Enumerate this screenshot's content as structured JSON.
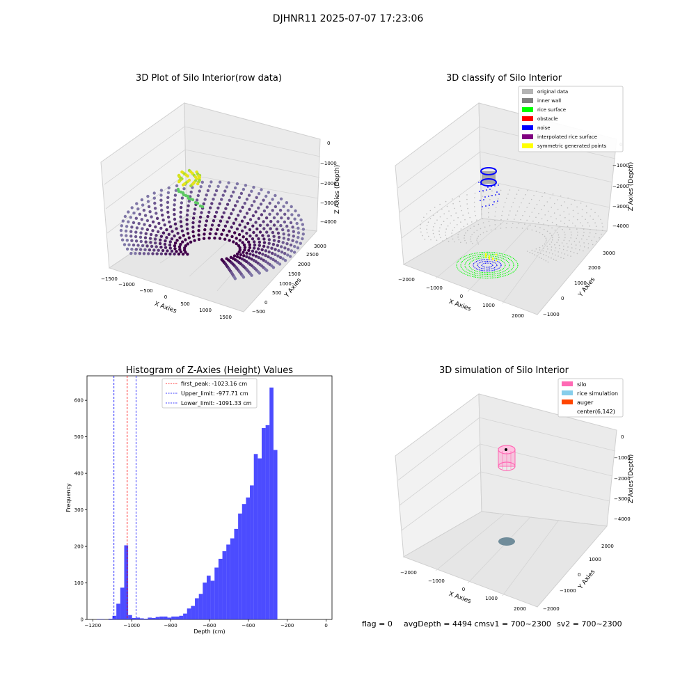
{
  "figure": {
    "suptitle": "DJHNR11 2025-07-07 17:23:06",
    "status": {
      "flag": "flag = 0",
      "avg_depth": "avgDepth = 4494 cmsv1 = 700~2300",
      "sv2": "sv2 = 700~2300"
    }
  },
  "panel1": {
    "title": "3D Plot of Silo Interior(row data)",
    "xlabel": "X Axies",
    "ylabel": "Y Axies",
    "zlabel": "Z Axies (Depth)",
    "x_ticks": [
      "−1500",
      "−1000",
      "−500",
      "0",
      "500",
      "1000",
      "1500"
    ],
    "y_ticks": [
      "−500",
      "0",
      "500",
      "1000",
      "1500",
      "2000",
      "2500",
      "3000"
    ],
    "z_ticks": [
      "0",
      "−1000",
      "−2000",
      "−3000",
      "−4000"
    ]
  },
  "panel2": {
    "title": "3D classify of Silo Interior",
    "xlabel": "X Axies",
    "ylabel": "Y Axies",
    "zlabel": "Z Axies (Depth)",
    "x_ticks": [
      "−2000",
      "−1000",
      "0",
      "1000",
      "2000"
    ],
    "y_ticks": [
      "−1000",
      "0",
      "1000",
      "2000",
      "3000"
    ],
    "z_ticks": [
      "0",
      "−1000",
      "−2000",
      "−3000",
      "−4000"
    ],
    "legend": [
      {
        "label": "original data",
        "color": "#b4b4b4"
      },
      {
        "label": "inner wall",
        "color": "#808080"
      },
      {
        "label": "rice surface",
        "color": "#00ff00"
      },
      {
        "label": "obstacle",
        "color": "#ff0000"
      },
      {
        "label": "noise",
        "color": "#0000ff"
      },
      {
        "label": "interpolated rice surface",
        "color": "#800080"
      },
      {
        "label": "symmetric generated points",
        "color": "#ffff00"
      }
    ]
  },
  "panel4": {
    "title": "3D simulation of Silo Interior",
    "xlabel": "X Axies",
    "ylabel": "Y Axies",
    "zlabel": "Z Axies (Depth)",
    "x_ticks": [
      "−2000",
      "−1000",
      "0",
      "1000",
      "2000"
    ],
    "y_ticks": [
      "−2000",
      "−1000",
      "0",
      "1000",
      "2000"
    ],
    "z_ticks": [
      "0",
      "−1000",
      "−2000",
      "−3000",
      "−4000"
    ],
    "legend": [
      {
        "label": "silo",
        "color": "#ff69b4"
      },
      {
        "label": "rice simulation",
        "color": "#87ceeb"
      },
      {
        "label": "auger",
        "color": "#ff4500"
      },
      {
        "label": "center(6,142)",
        "color": "#ffffff"
      }
    ]
  },
  "chart_data": [
    {
      "type": "histogram",
      "title": "Histogram of Z-Axies (Height) Values",
      "xlabel": "Depth (cm)",
      "ylabel": "Frequency",
      "xlim": [
        -1230,
        30
      ],
      "ylim": [
        0,
        667
      ],
      "x_ticks": [
        -1200,
        -1000,
        -800,
        -600,
        -400,
        -200,
        0
      ],
      "x_tick_labels": [
        "−1200",
        "−1000",
        "−800",
        "−600",
        "−400",
        "−200",
        "0"
      ],
      "y_ticks": [
        0,
        100,
        200,
        300,
        400,
        500,
        600
      ],
      "bar_color": "#0000ff",
      "bin_start": -1180,
      "bin_width": 20.2,
      "values": [
        1,
        1,
        0,
        2,
        10,
        43,
        87,
        203,
        12,
        4,
        5,
        3,
        2,
        5,
        4,
        7,
        8,
        8,
        5,
        8,
        8,
        10,
        16,
        30,
        37,
        58,
        70,
        101,
        120,
        106,
        142,
        166,
        187,
        205,
        222,
        248,
        290,
        316,
        334,
        367,
        453,
        441,
        524,
        532,
        635,
        464
      ],
      "lines": [
        {
          "label": "first_peak: -1023.16 cm",
          "value": -1023.16,
          "color": "#ff0000"
        },
        {
          "label": "Upper_limit: -977.71 cm",
          "value": -977.71,
          "color": "#0000ff"
        },
        {
          "label": "Lower_limit: -1091.33 cm",
          "value": -1091.33,
          "color": "#0000ff"
        }
      ]
    }
  ]
}
